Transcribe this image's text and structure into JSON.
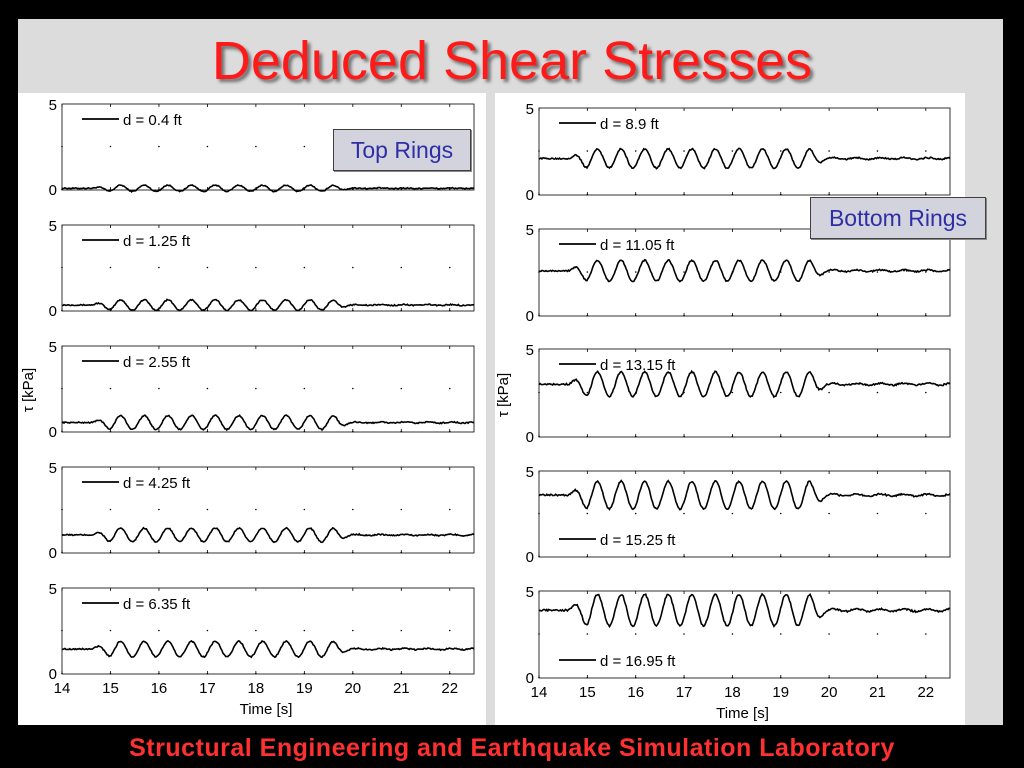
{
  "slide": {
    "title": "Deduced Shear Stresses",
    "footer": "Structural Engineering and Earthquake Simulation Laboratory",
    "top_rings_label": "Top Rings",
    "bottom_rings_label": "Bottom Rings",
    "colors": {
      "title": "#ff1a1a",
      "footer": "#ff3030",
      "box_text": "#2e2ea6",
      "line": "#000000"
    }
  },
  "chart_data": [
    {
      "type": "line",
      "group": "Top Rings",
      "xlabel": "Time [s]",
      "ylabel": "τ [kPa]",
      "xlim": [
        14,
        22.5
      ],
      "xticks": [
        14,
        15,
        16,
        17,
        18,
        19,
        20,
        21,
        22
      ],
      "ylim": [
        0,
        5
      ],
      "yticks": [
        0,
        5
      ],
      "legend_position": "top-left",
      "series": [
        {
          "name": "d = 0.4 ft",
          "mean": 0.1,
          "amplitude": 0.18,
          "legend_position": "top-left"
        },
        {
          "name": "d = 1.25 ft",
          "mean": 0.35,
          "amplitude": 0.3,
          "legend_position": "top-left"
        },
        {
          "name": "d = 2.55 ft",
          "mean": 0.55,
          "amplitude": 0.4,
          "legend_position": "top-left"
        },
        {
          "name": "d = 4.25 ft",
          "mean": 1.05,
          "amplitude": 0.4,
          "legend_position": "top-left"
        },
        {
          "name": "d = 6.35 ft",
          "mean": 1.45,
          "amplitude": 0.45,
          "legend_position": "top-left"
        }
      ]
    },
    {
      "type": "line",
      "group": "Bottom Rings",
      "xlabel": "Time [s]",
      "ylabel": "τ [kPa]",
      "xlim": [
        14,
        22.5
      ],
      "xticks": [
        14,
        15,
        16,
        17,
        18,
        19,
        20,
        21,
        22
      ],
      "ylim": [
        0,
        5
      ],
      "yticks": [
        0,
        5
      ],
      "series": [
        {
          "name": "d = 8.9 ft",
          "mean": 2.1,
          "amplitude": 0.55,
          "legend_position": "top-left"
        },
        {
          "name": "d = 11.05 ft",
          "mean": 2.6,
          "amplitude": 0.6,
          "legend_position": "top-left"
        },
        {
          "name": "d = 13.15 ft",
          "mean": 3.0,
          "amplitude": 0.7,
          "legend_position": "top-left"
        },
        {
          "name": "d = 15.25 ft",
          "mean": 3.6,
          "amplitude": 0.8,
          "legend_position": "bottom-left"
        },
        {
          "name": "d = 16.95 ft",
          "mean": 3.9,
          "amplitude": 0.9,
          "legend_position": "bottom-left"
        }
      ]
    }
  ]
}
